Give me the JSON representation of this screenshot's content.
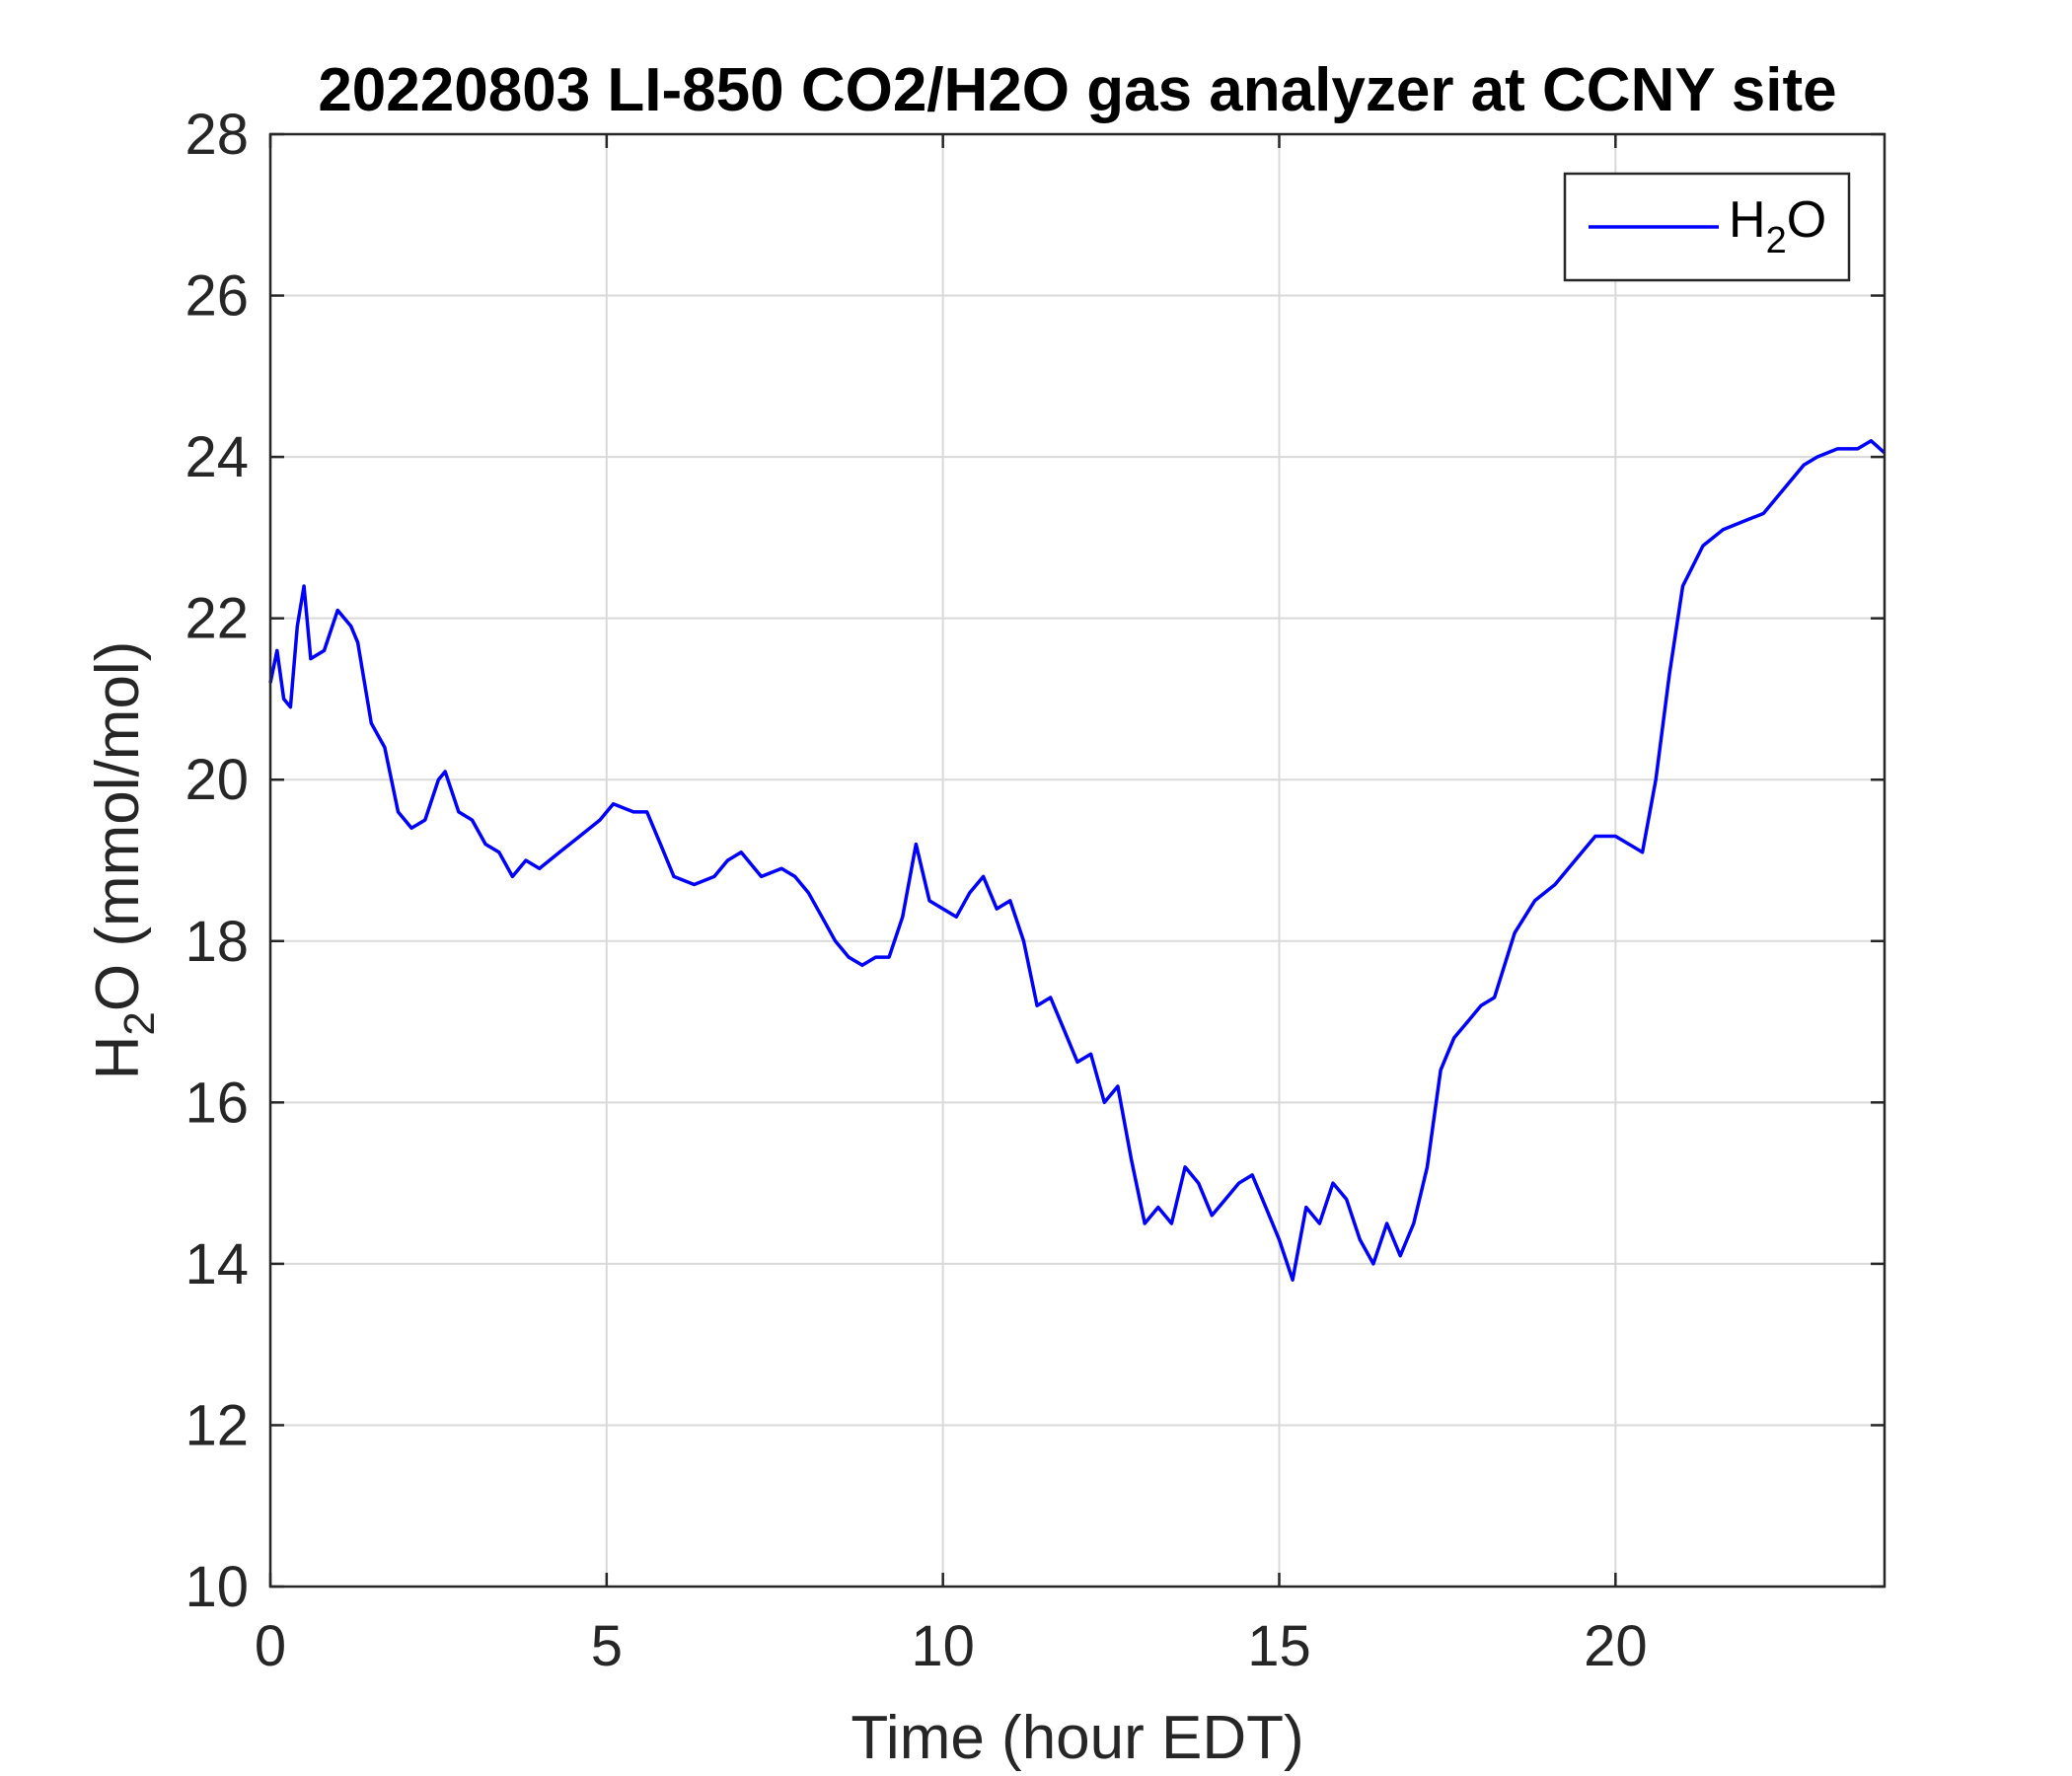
{
  "chart_data": {
    "type": "line",
    "title": "20220803 LI-850 CO2/H2O gas analyzer at CCNY site",
    "xlabel": "Time (hour EDT)",
    "ylabel_main": "H",
    "ylabel_sub": "2",
    "ylabel_rest": "O (mmol/mol)",
    "xlim": [
      0,
      24
    ],
    "ylim": [
      10,
      28
    ],
    "xticks": [
      "0",
      "5",
      "10",
      "15",
      "20"
    ],
    "yticks": [
      "10",
      "12",
      "14",
      "16",
      "18",
      "20",
      "22",
      "24",
      "26",
      "28"
    ],
    "grid": true,
    "legend_position": "top-right",
    "series": [
      {
        "legend_main": "H",
        "legend_sub": "2",
        "legend_rest": "O",
        "color": "#0000ff",
        "x": [
          0.0,
          0.1,
          0.2,
          0.3,
          0.4,
          0.5,
          0.6,
          0.8,
          1.0,
          1.2,
          1.3,
          1.5,
          1.7,
          1.9,
          2.1,
          2.3,
          2.5,
          2.6,
          2.8,
          3.0,
          3.2,
          3.4,
          3.6,
          3.8,
          4.0,
          4.3,
          4.6,
          4.9,
          5.1,
          5.4,
          5.6,
          5.8,
          6.0,
          6.3,
          6.6,
          6.8,
          7.0,
          7.3,
          7.6,
          7.8,
          8.0,
          8.2,
          8.4,
          8.6,
          8.8,
          9.0,
          9.2,
          9.4,
          9.6,
          9.8,
          10.0,
          10.2,
          10.4,
          10.6,
          10.8,
          11.0,
          11.2,
          11.4,
          11.6,
          11.8,
          12.0,
          12.2,
          12.4,
          12.6,
          12.8,
          13.0,
          13.2,
          13.4,
          13.6,
          13.8,
          14.0,
          14.2,
          14.4,
          14.6,
          14.8,
          15.0,
          15.2,
          15.4,
          15.6,
          15.8,
          16.0,
          16.2,
          16.4,
          16.6,
          16.8,
          17.0,
          17.2,
          17.4,
          17.6,
          17.8,
          18.0,
          18.2,
          18.5,
          18.8,
          19.1,
          19.4,
          19.7,
          20.0,
          20.2,
          20.4,
          20.6,
          20.8,
          21.0,
          21.3,
          21.6,
          21.9,
          22.2,
          22.5,
          22.8,
          23.0,
          23.3,
          23.6,
          23.8,
          24.0
        ],
        "y": [
          21.2,
          21.6,
          21.0,
          20.9,
          21.9,
          22.4,
          21.5,
          21.6,
          22.1,
          21.9,
          21.7,
          20.7,
          20.4,
          19.6,
          19.4,
          19.5,
          20.0,
          20.1,
          19.6,
          19.5,
          19.2,
          19.1,
          18.8,
          19.0,
          18.9,
          19.1,
          19.3,
          19.5,
          19.7,
          19.6,
          19.6,
          19.2,
          18.8,
          18.7,
          18.8,
          19.0,
          19.1,
          18.8,
          18.9,
          18.8,
          18.6,
          18.3,
          18.0,
          17.8,
          17.7,
          17.8,
          17.8,
          18.3,
          19.2,
          18.5,
          18.4,
          18.3,
          18.6,
          18.8,
          18.4,
          18.5,
          18.0,
          17.2,
          17.3,
          16.9,
          16.5,
          16.6,
          16.0,
          16.2,
          15.3,
          14.5,
          14.7,
          14.5,
          15.2,
          15.0,
          14.6,
          14.8,
          15.0,
          15.1,
          14.7,
          14.3,
          13.8,
          14.7,
          14.5,
          15.0,
          14.8,
          14.3,
          14.0,
          14.5,
          14.1,
          14.5,
          15.2,
          16.4,
          16.8,
          17.0,
          17.2,
          17.3,
          18.1,
          18.5,
          18.7,
          19.0,
          19.3,
          19.3,
          19.2,
          19.1,
          20.0,
          21.3,
          22.4,
          22.9,
          23.1,
          23.2,
          23.3,
          23.6,
          23.9,
          24.0,
          24.1,
          24.1,
          24.2,
          24.05
        ]
      }
    ]
  }
}
